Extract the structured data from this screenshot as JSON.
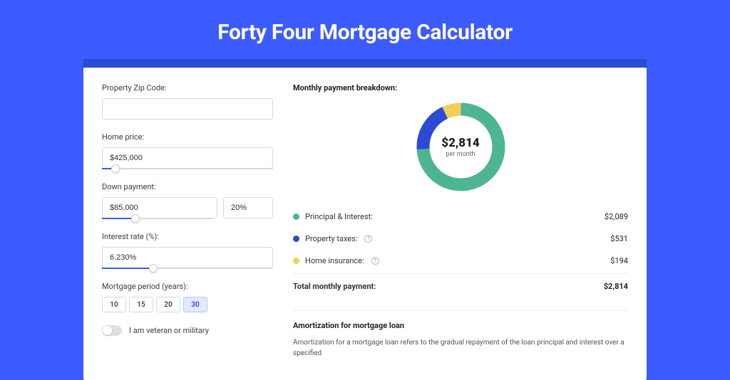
{
  "page": {
    "title": "Forty Four Mortgage Calculator",
    "bg_color": "#3b5bff",
    "header_bg": "#2b4bd6"
  },
  "form": {
    "zip": {
      "label": "Property Zip Code:",
      "value": ""
    },
    "home_price": {
      "label": "Home price:",
      "value": "$425,000",
      "slider_pct": 8
    },
    "down_payment": {
      "label": "Down payment:",
      "value": "$85,000",
      "pct_value": "20%",
      "slider_pct": 20
    },
    "interest": {
      "label": "Interest rate (%):",
      "value": "6.230%",
      "slider_pct": 30
    },
    "period": {
      "label": "Mortgage period (years):",
      "options": [
        "10",
        "15",
        "20",
        "30"
      ],
      "selected": "30"
    },
    "veteran": {
      "label": "I am veteran or military",
      "on": false
    }
  },
  "breakdown": {
    "title": "Monthly payment breakdown:",
    "center_amount": "$2,814",
    "center_sub": "per month",
    "donut": {
      "type": "donut",
      "size": 125,
      "thickness": 18,
      "slices": [
        {
          "label": "Principal & Interest:",
          "value": "$2,089",
          "pct": 74,
          "color": "#4db58f"
        },
        {
          "label": "Property taxes:",
          "value": "$531",
          "pct": 19,
          "color": "#2b4bd6",
          "tooltip": true
        },
        {
          "label": "Home insurance:",
          "value": "$194",
          "pct": 7,
          "color": "#f2cd5a",
          "tooltip": true
        }
      ]
    },
    "total": {
      "label": "Total monthly payment:",
      "value": "$2,814"
    }
  },
  "amortization": {
    "title": "Amortization for mortgage loan",
    "text": "Amortization for a mortgage loan refers to the gradual repayment of the loan principal and interest over a specified"
  }
}
